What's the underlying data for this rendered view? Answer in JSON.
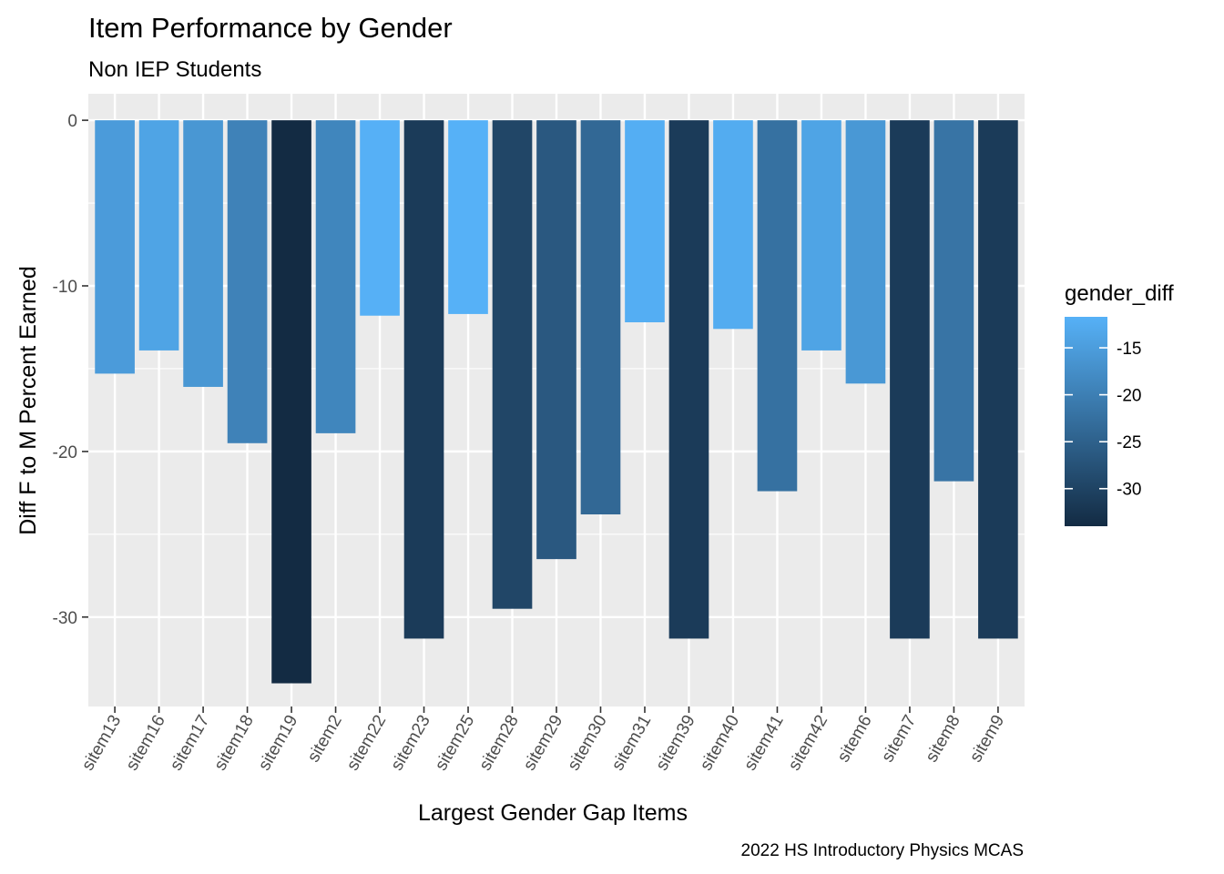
{
  "chart_data": {
    "type": "bar",
    "title": "Item Performance by Gender",
    "subtitle": "Non IEP Students",
    "xlabel": "Largest Gender Gap Items",
    "ylabel": "Diff F to M Percent Earned",
    "caption": "2022 HS Introductory Physics MCAS",
    "categories": [
      "sitem13",
      "sitem16",
      "sitem17",
      "sitem18",
      "sitem19",
      "sitem2",
      "sitem22",
      "sitem23",
      "sitem25",
      "sitem28",
      "sitem29",
      "sitem30",
      "sitem31",
      "sitem39",
      "sitem40",
      "sitem41",
      "sitem42",
      "sitem6",
      "sitem7",
      "sitem8",
      "sitem9"
    ],
    "values": [
      -15.3,
      -13.9,
      -16.1,
      -19.5,
      -34.0,
      -18.9,
      -11.8,
      -31.3,
      -11.7,
      -29.5,
      -26.5,
      -23.8,
      -12.2,
      -31.3,
      -12.6,
      -22.4,
      -13.9,
      -15.9,
      -31.3,
      -21.8,
      -31.3
    ],
    "ylim": [
      -35.4,
      1.6
    ],
    "yticks": [
      0,
      -10,
      -20,
      -30
    ],
    "ytick_labels": [
      "0",
      "-10",
      "-20",
      "-30"
    ],
    "grid": true,
    "panel_background": "#EBEBEB",
    "legend": {
      "title": "gender_diff",
      "position": "right",
      "low_color": "#132B43",
      "high_color": "#56B1F7",
      "range": [
        -34.0,
        -11.7
      ],
      "ticks": [
        -15,
        -20,
        -25,
        -30
      ],
      "tick_labels": [
        "-15",
        "-20",
        "-25",
        "-30"
      ]
    }
  }
}
